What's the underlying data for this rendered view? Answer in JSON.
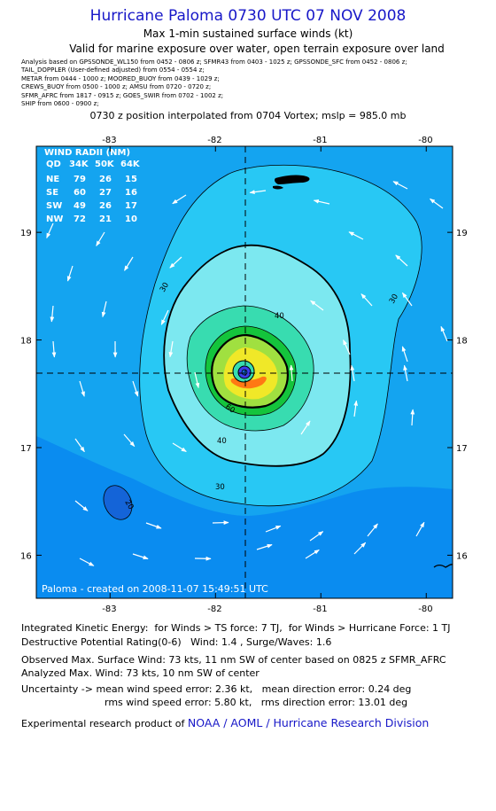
{
  "header": {
    "title": "Hurricane Paloma 0730 UTC 07 NOV 2008",
    "subtitle1": "Max 1-min sustained surface winds (kt)",
    "subtitle2": "Valid for marine exposure over water, open terrain exposure over land"
  },
  "analysis_lines": [
    "Analysis based on  GPSSONDE_WL150 from 0452 - 0806 z;  SFMR43 from 0403 - 1025 z;  GPSSONDE_SFC from 0452 - 0806 z;",
    "TAIL_DOPPLER  (User-defined adjusted) from 0554 - 0554 z;",
    "METAR from 0444 - 1000 z;  MOORED_BUOY from 0439 - 1029 z;",
    "CREWS_BUOY from 0500 - 1000 z;  AMSU from 0720 - 0720 z;",
    "SFMR_AFRC from 1817 - 0915 z;  GOES_SWIR from 0702 - 1002 z;",
    "SHIP from 0600 - 0900 z;"
  ],
  "position_note": "0730 z position interpolated from 0704 Vortex; mslp = 985.0 mb",
  "map": {
    "x_ticks": [
      {
        "value": -83,
        "label": "-83"
      },
      {
        "value": -82,
        "label": "-82"
      },
      {
        "value": -81,
        "label": "-81"
      },
      {
        "value": -80,
        "label": "-80"
      }
    ],
    "y_ticks": [
      {
        "value": 19,
        "label": "19"
      },
      {
        "value": 18,
        "label": "18"
      },
      {
        "value": 17,
        "label": "17"
      },
      {
        "value": 16,
        "label": "16"
      }
    ],
    "lon_range": [
      -83.7,
      -79.75
    ],
    "lat_range": [
      15.6,
      19.8
    ],
    "center": {
      "lon": -81.7,
      "lat": 17.6
    },
    "contour_labels": [
      "30",
      "30",
      "30",
      "40",
      "40",
      "60",
      "20"
    ],
    "colors": {
      "ocean_deep": "#0a8cf0",
      "band_20": "#14a4f0",
      "band_30": "#28c8f4",
      "band_40": "#7ce8f0",
      "band_50": "#38dcb0",
      "band_60": "#14c43c",
      "band_65": "#a0e040",
      "band_70": "#f0e828",
      "band_high": "#ff7814",
      "eye": "#3c3ce8",
      "low_spot": "#1464d8",
      "land": "#000000"
    },
    "wind_radii": {
      "title": "WIND RADII (NM)",
      "header": [
        "QD",
        "34K",
        "50K",
        "64K"
      ],
      "rows": [
        [
          "NE",
          "79",
          "26",
          "15"
        ],
        [
          "SE",
          "60",
          "27",
          "16"
        ],
        [
          "SW",
          "49",
          "26",
          "17"
        ],
        [
          "NW",
          "72",
          "21",
          "10"
        ]
      ]
    },
    "credit": "Paloma  -  created on 2008-11-07 15:49:51 UTC"
  },
  "footer": {
    "ike": "Integrated Kinetic Energy:  for Winds > TS force: 7 TJ,  for Winds > Hurricane Force: 1 TJ",
    "dpr": "Destructive Potential Rating(0-6)   Wind: 1.4 , Surge/Waves: 1.6",
    "obs": "Observed Max. Surface Wind: 73 kts, 11 nm SW of center based on 0825 z SFMR_AFRC",
    "analyzed": "Analyzed Max. Wind: 73 kts, 10 nm SW of center",
    "unc1": "Uncertainty -> mean wind speed error: 2.36 kt,   mean direction error: 0.24 deg",
    "unc2": "rms wind speed error: 5.80 kt,   rms direction error: 13.01 deg",
    "experimental_prefix": "Experimental research product of ",
    "experimental_link": "NOAA / AOML / Hurricane Research Division"
  }
}
